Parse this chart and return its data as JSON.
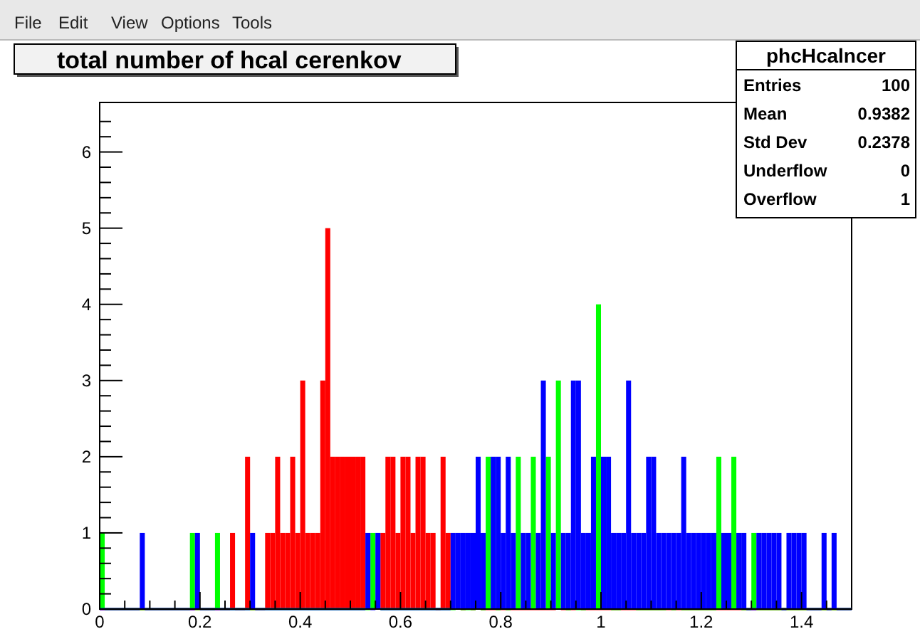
{
  "chart_data": {
    "type": "histogram",
    "title": "total number of hcal cerenkov",
    "annotations": [
      "File",
      "Edit",
      "View",
      "Options",
      "Tools",
      "phcHcalncer",
      "Entries 100",
      "Mean 0.9382",
      "Std Dev 0.2378",
      "Underflow 0",
      "Overflow 1"
    ],
    "bins": [
      0,
      0.01,
      0.02,
      0.03,
      0.04,
      0.05,
      0.06,
      0.07,
      0.08,
      0.09,
      0.1,
      0.11,
      0.12,
      0.13,
      0.14,
      0.15,
      0.16,
      0.17,
      0.18,
      0.19,
      0.2,
      0.21,
      0.22,
      0.23,
      0.24,
      0.25,
      0.26,
      0.27,
      0.28,
      0.29,
      0.3,
      0.31,
      0.32,
      0.33,
      0.34,
      0.35,
      0.36,
      0.37,
      0.38,
      0.39,
      0.4,
      0.41,
      0.42,
      0.43,
      0.44,
      0.45,
      0.46,
      0.47,
      0.48,
      0.49,
      0.5,
      0.51,
      0.52,
      0.53,
      0.54,
      0.55,
      0.56,
      0.57,
      0.58,
      0.59,
      0.6,
      0.61,
      0.62,
      0.63,
      0.64,
      0.65,
      0.66,
      0.67,
      0.68,
      0.69,
      0.7,
      0.71,
      0.72,
      0.73,
      0.74,
      0.75,
      0.76,
      0.77,
      0.78,
      0.79,
      0.8,
      0.81,
      0.82,
      0.83,
      0.84,
      0.85,
      0.86,
      0.87,
      0.88,
      0.89,
      0.9,
      0.91,
      0.92,
      0.93,
      0.94,
      0.95,
      0.96,
      0.97,
      0.98,
      0.99,
      1,
      1.01,
      1.02,
      1.03,
      1.04,
      1.05,
      1.06,
      1.07,
      1.08,
      1.09,
      1.1,
      1.11,
      1.12,
      1.13,
      1.14,
      1.15,
      1.16,
      1.17,
      1.18,
      1.19,
      1.2,
      1.21,
      1.22,
      1.23,
      1.24,
      1.25,
      1.26,
      1.27,
      1.28,
      1.29,
      1.3,
      1.31,
      1.32,
      1.33,
      1.34,
      1.35,
      1.36,
      1.37,
      1.38,
      1.39,
      1.4,
      1.41,
      1.42,
      1.43,
      1.44,
      1.45,
      1.46,
      1.47,
      1.48,
      1.49,
      1.5
    ],
    "series": [
      {
        "color": "#ff0000",
        "values": [
          0,
          0,
          0,
          0,
          0,
          0,
          0,
          0,
          0,
          0,
          0,
          0,
          0,
          0,
          0,
          0,
          0,
          0,
          0,
          0,
          0,
          0,
          0,
          0,
          0,
          0,
          1,
          0,
          0,
          2,
          0,
          0,
          0,
          1,
          1,
          2,
          1,
          1,
          2,
          1,
          3,
          1,
          1,
          1,
          3,
          5,
          2,
          2,
          2,
          2,
          2,
          2,
          2,
          null,
          null,
          null,
          1,
          2,
          2,
          1,
          2,
          2,
          1,
          2,
          2,
          1,
          1,
          0,
          2,
          1,
          null,
          null,
          0,
          null,
          0,
          null,
          0,
          0,
          0,
          0,
          0,
          0,
          0,
          0,
          0,
          0,
          0,
          0,
          0,
          0,
          0,
          null,
          0,
          0,
          0,
          null,
          0,
          0,
          0,
          0,
          0,
          0,
          0,
          0,
          0,
          0,
          0,
          0,
          0,
          0,
          0,
          0,
          0,
          0,
          0,
          0,
          0,
          0,
          0,
          0,
          0,
          0,
          0,
          0,
          0,
          0,
          0,
          0,
          0,
          0,
          0,
          0,
          0,
          0,
          0,
          0,
          0,
          0,
          0,
          0,
          0,
          0,
          0,
          0,
          0,
          0,
          0,
          0,
          0,
          0
        ]
      },
      {
        "color": "#00ff00",
        "values": [
          1,
          0,
          0,
          0,
          0,
          0,
          0,
          0,
          0,
          0,
          0,
          0,
          0,
          0,
          0,
          0,
          0,
          0,
          1,
          0,
          0,
          0,
          0,
          1,
          0,
          0,
          0,
          0,
          0,
          0,
          0,
          0,
          0,
          0,
          0,
          0,
          0,
          0,
          0,
          0,
          0,
          0,
          0,
          0,
          0,
          0,
          0,
          0,
          0,
          0,
          0,
          0,
          0,
          0,
          1,
          null,
          0,
          0,
          0,
          0,
          0,
          0,
          0,
          0,
          0,
          0,
          0,
          0,
          0,
          0,
          0,
          null,
          0,
          0,
          0,
          null,
          0,
          2,
          null,
          0,
          null,
          0,
          null,
          2,
          null,
          null,
          2,
          null,
          null,
          2,
          null,
          3,
          null,
          0,
          null,
          0,
          0,
          null,
          null,
          4,
          null,
          null,
          0,
          0,
          null,
          null,
          null,
          0,
          0,
          0,
          0,
          0,
          0,
          null,
          0,
          null,
          0,
          0,
          0,
          0,
          0,
          0,
          0,
          2,
          null,
          null,
          2,
          null,
          0,
          0,
          1,
          0,
          0,
          0,
          0,
          0,
          0,
          0,
          0,
          0,
          0,
          0,
          0,
          0,
          0,
          0,
          0,
          0,
          0,
          0
        ]
      },
      {
        "color": "#0000ff",
        "values": [
          0,
          0,
          0,
          0,
          0,
          0,
          0,
          0,
          1,
          0,
          0,
          0,
          0,
          0,
          0,
          0,
          0,
          0,
          0,
          1,
          0,
          0,
          0,
          0,
          0,
          0,
          0,
          0,
          0,
          0,
          1,
          0,
          0,
          0,
          0,
          0,
          0,
          0,
          0,
          0,
          0,
          0,
          0,
          0,
          0,
          0,
          0,
          0,
          0,
          0,
          0,
          0,
          0,
          1,
          0,
          1,
          0,
          0,
          0,
          0,
          0,
          0,
          0,
          0,
          0,
          0,
          0,
          0,
          0,
          0,
          1,
          1,
          1,
          1,
          1,
          2,
          1,
          null,
          2,
          2,
          1,
          2,
          1,
          null,
          1,
          1,
          null,
          1,
          3,
          null,
          1,
          null,
          1,
          1,
          3,
          3,
          1,
          1,
          2,
          null,
          2,
          2,
          1,
          1,
          1,
          3,
          1,
          1,
          1,
          2,
          2,
          1,
          1,
          1,
          1,
          1,
          2,
          1,
          1,
          1,
          1,
          1,
          1,
          null,
          1,
          1,
          null,
          1,
          1,
          0,
          0,
          1,
          1,
          1,
          1,
          1,
          0,
          1,
          1,
          1,
          1,
          0,
          0,
          0,
          1,
          0,
          1,
          0,
          0,
          0
        ]
      }
    ],
    "xlim": [
      0,
      1.5
    ],
    "ylim": [
      0,
      6.65
    ],
    "xticks": [
      0,
      {
        "value": 0.05,
        "label": null
      },
      {
        "value": 0.1,
        "label": null
      },
      {
        "value": 0.15,
        "label": null
      },
      0.2,
      {
        "value": 0.25,
        "label": null
      },
      {
        "value": 0.3,
        "label": null
      },
      {
        "value": 0.35,
        "label": null
      },
      0.4,
      {
        "value": 0.45,
        "label": null
      },
      {
        "value": 0.5,
        "label": null
      },
      {
        "value": 0.55,
        "label": null
      },
      0.6,
      {
        "value": 0.65,
        "label": null
      },
      {
        "value": 0.7,
        "label": null
      },
      {
        "value": 0.75,
        "label": null
      },
      0.8,
      {
        "value": 0.85,
        "label": null
      },
      {
        "value": 0.9,
        "label": null
      },
      {
        "value": 0.95,
        "label": null
      },
      1,
      {
        "value": 1.05,
        "label": null
      },
      {
        "value": 1.1,
        "label": null
      },
      {
        "value": 1.15,
        "label": null
      },
      1.2,
      {
        "value": 1.25,
        "label": null
      },
      {
        "value": 1.3,
        "label": null
      },
      {
        "value": 1.35,
        "label": null
      },
      1.4,
      {
        "value": 1.45,
        "label": null
      }
    ],
    "yticks": [
      0,
      {
        "value": 0.2,
        "label": null
      },
      {
        "value": 0.4,
        "label": null
      },
      {
        "value": 0.6,
        "label": null
      },
      {
        "value": 0.8,
        "label": null
      },
      1,
      {
        "value": 1.2,
        "label": null
      },
      {
        "value": 1.4,
        "label": null
      },
      {
        "value": 1.6,
        "label": null
      },
      {
        "value": 1.8,
        "label": null
      },
      2,
      {
        "value": 2.2,
        "label": null
      },
      {
        "value": 2.4,
        "label": null
      },
      {
        "value": 2.6,
        "label": null
      },
      {
        "value": 2.8,
        "label": null
      },
      3,
      {
        "value": 3.2,
        "label": null
      },
      {
        "value": 3.4,
        "label": null
      },
      {
        "value": 3.6,
        "label": null
      },
      {
        "value": 3.8,
        "label": null
      },
      4,
      {
        "value": 4.2,
        "label": null
      },
      {
        "value": 4.4,
        "label": null
      },
      {
        "value": 4.6,
        "label": null
      },
      {
        "value": 4.8,
        "label": null
      },
      5,
      {
        "value": 5.2,
        "label": null
      },
      {
        "value": 5.4,
        "label": null
      },
      {
        "value": 5.6,
        "label": null
      },
      {
        "value": 5.8,
        "label": null
      },
      6,
      {
        "value": 6.2,
        "label": null
      },
      {
        "value": 6.4,
        "label": null
      }
    ],
    "grid": false
  }
}
